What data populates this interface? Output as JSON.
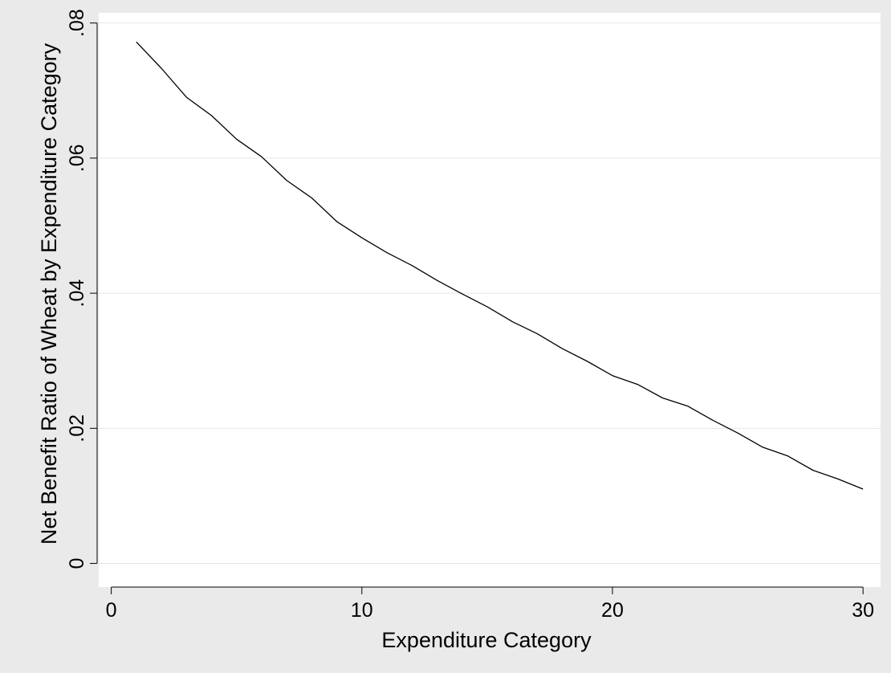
{
  "chart_data": {
    "type": "line",
    "xlabel": "Expenditure Category",
    "ylabel": "Net Benefit Ratio of Wheat by Expenditure Category",
    "xlim": [
      -0.5,
      30.7
    ],
    "ylim": [
      -0.0035,
      0.0815
    ],
    "xticks": [
      0,
      10,
      20,
      30
    ],
    "xtick_labels": [
      "0",
      "10",
      "20",
      "30"
    ],
    "yticks": [
      0,
      0.02,
      0.04,
      0.06,
      0.08
    ],
    "ytick_labels": [
      "0",
      ".02",
      ".04",
      ".06",
      ".08"
    ],
    "grid": "horizontal",
    "series": [
      {
        "x": [
          1,
          2,
          3,
          4,
          5,
          6,
          7,
          8,
          9,
          10,
          11,
          12,
          13,
          14,
          15,
          16,
          17,
          18,
          19,
          20,
          21,
          22,
          23,
          24,
          25,
          26,
          27,
          28,
          29,
          30
        ],
        "y": [
          0.0772,
          0.0733,
          0.069,
          0.0663,
          0.0628,
          0.0602,
          0.0567,
          0.0541,
          0.0506,
          0.0482,
          0.046,
          0.0441,
          0.0419,
          0.0399,
          0.038,
          0.0358,
          0.034,
          0.0318,
          0.0299,
          0.0278,
          0.0265,
          0.0245,
          0.0233,
          0.0212,
          0.0193,
          0.0172,
          0.0159,
          0.0138,
          0.0125,
          0.011
        ]
      }
    ],
    "colors": {
      "background": "#eaeaea",
      "plot_area": "#ffffff",
      "line": "#000000",
      "grid": "#e6e6e6"
    }
  }
}
